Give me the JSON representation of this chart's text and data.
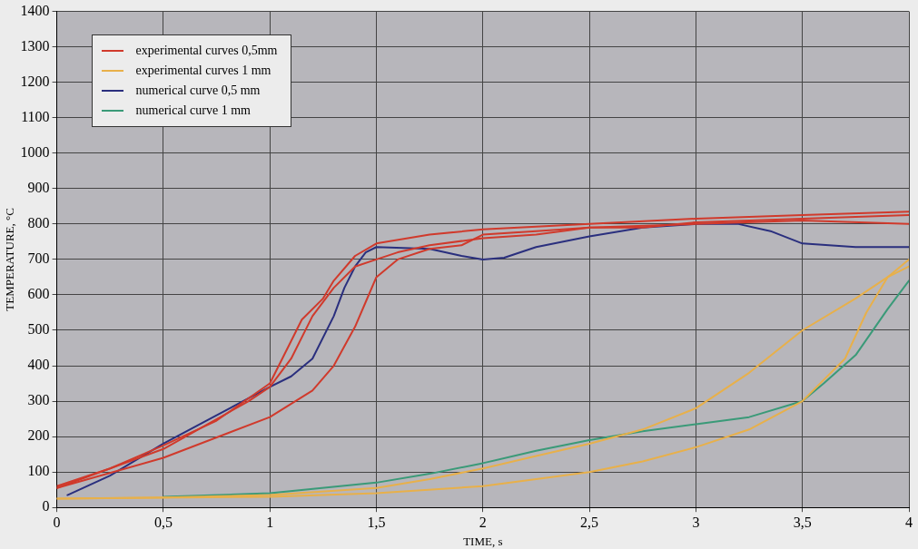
{
  "chart_data": {
    "type": "line",
    "xlabel": "TIME, s",
    "ylabel": "TEMPERATURE, °C",
    "xlim": [
      0,
      4
    ],
    "ylim": [
      0,
      1400
    ],
    "xticks": [
      0,
      {
        "value": 0.5,
        "label": "0,5"
      },
      1,
      {
        "value": 1.5,
        "label": "1,5"
      },
      2,
      {
        "value": 2.5,
        "label": "2,5"
      },
      3,
      {
        "value": 3.5,
        "label": "3,5"
      },
      4
    ],
    "yticks": [
      0,
      100,
      200,
      300,
      400,
      500,
      600,
      700,
      800,
      900,
      1000,
      1100,
      1200,
      1300,
      1400
    ],
    "grid": true,
    "legend": "top left",
    "marker": "none",
    "line_style": "solid",
    "series": [
      {
        "name": "experimental curves 0,5mm",
        "color": "#d03a2c",
        "x": [
          0,
          0.25,
          0.5,
          0.75,
          1.0,
          1.1,
          1.15,
          1.25,
          1.3,
          1.4,
          1.5,
          1.75,
          2.0,
          2.5,
          3.0,
          3.5,
          4.0
        ],
        "values": [
          60,
          110,
          175,
          245,
          350,
          470,
          530,
          590,
          640,
          710,
          745,
          770,
          785,
          800,
          815,
          825,
          835
        ]
      },
      {
        "color": "#d03a2c",
        "x": [
          0,
          0.5,
          0.9,
          1.0,
          1.1,
          1.2,
          1.3,
          1.4,
          1.5,
          1.6,
          1.75,
          2.0,
          2.25,
          2.5,
          3.0,
          3.5,
          4.0
        ],
        "values": [
          55,
          165,
          300,
          340,
          420,
          540,
          620,
          680,
          700,
          720,
          740,
          760,
          770,
          790,
          800,
          810,
          800
        ]
      },
      {
        "color": "#d03a2c",
        "x": [
          0,
          0.5,
          1.0,
          1.2,
          1.3,
          1.4,
          1.45,
          1.5,
          1.6,
          1.75,
          1.9,
          2.0,
          2.25,
          2.5,
          2.75,
          3.0,
          3.5,
          4.0
        ],
        "values": [
          55,
          140,
          255,
          330,
          400,
          510,
          580,
          650,
          700,
          730,
          740,
          770,
          780,
          790,
          790,
          805,
          815,
          825
        ]
      },
      {
        "name": "experimental curves 1 mm",
        "color": "#e8b04a",
        "x": [
          0,
          0.5,
          1.0,
          1.5,
          1.75,
          2.0,
          2.25,
          2.5,
          2.75,
          3.0,
          3.25,
          3.5,
          3.75,
          3.9,
          4.0
        ],
        "values": [
          25,
          28,
          35,
          55,
          80,
          110,
          145,
          180,
          220,
          280,
          380,
          500,
          590,
          650,
          680
        ]
      },
      {
        "color": "#e8b04a",
        "x": [
          0,
          1.0,
          1.5,
          2.0,
          2.5,
          2.75,
          3.0,
          3.25,
          3.5,
          3.6,
          3.7,
          3.8,
          3.9,
          4.0
        ],
        "values": [
          25,
          30,
          40,
          60,
          100,
          130,
          170,
          220,
          300,
          360,
          420,
          550,
          650,
          700
        ]
      },
      {
        "name": "numerical curve 0,5 mm",
        "color": "#2a2f7e",
        "x": [
          0.05,
          0.25,
          0.5,
          0.75,
          1.0,
          1.1,
          1.2,
          1.3,
          1.35,
          1.4,
          1.45,
          1.5,
          1.75,
          1.9,
          2.0,
          2.1,
          2.25,
          2.5,
          2.75,
          3.0,
          3.2,
          3.35,
          3.5,
          3.75,
          4.0
        ],
        "values": [
          35,
          90,
          180,
          260,
          340,
          370,
          420,
          540,
          620,
          680,
          720,
          735,
          730,
          710,
          700,
          705,
          735,
          765,
          790,
          800,
          800,
          780,
          745,
          735,
          735
        ]
      },
      {
        "name": "numerical curve 1 mm",
        "color": "#3a9a78",
        "x": [
          0.5,
          1.0,
          1.5,
          1.75,
          2.0,
          2.25,
          2.5,
          2.75,
          3.0,
          3.25,
          3.5,
          3.6,
          3.75,
          3.9,
          4.0
        ],
        "values": [
          30,
          40,
          70,
          95,
          125,
          160,
          190,
          215,
          235,
          255,
          300,
          350,
          430,
          560,
          640
        ]
      }
    ]
  }
}
